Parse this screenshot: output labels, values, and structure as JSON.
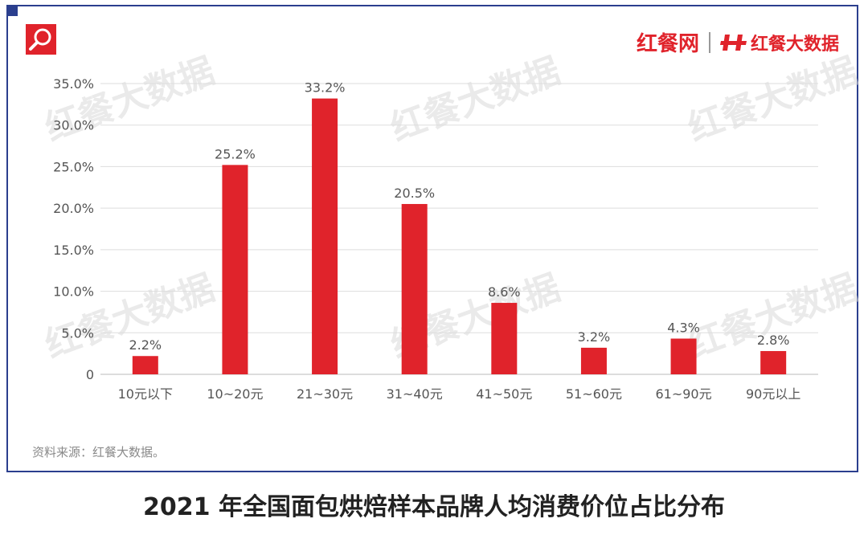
{
  "brand": {
    "main_label": "红餐网",
    "sub_label": "红餐大数据",
    "watermark": "红餐大数据"
  },
  "source": "资料来源：红餐大数据。",
  "caption": "2021 年全国面包烘焙样本品牌人均消费价位占比分布",
  "colors": {
    "bar": "#e0232b",
    "frame": "#2b3f8e",
    "grid": "#dddddd"
  },
  "chart_data": {
    "type": "bar",
    "categories": [
      "10元以下",
      "10~20元",
      "21~30元",
      "31~40元",
      "41~50元",
      "51~60元",
      "61~90元",
      "90元以上"
    ],
    "values": [
      2.2,
      25.2,
      33.2,
      20.5,
      8.6,
      3.2,
      4.3,
      2.8
    ],
    "value_labels": [
      "2.2%",
      "25.2%",
      "33.2%",
      "20.5%",
      "8.6%",
      "3.2%",
      "4.3%",
      "2.8%"
    ],
    "y_ticks": [
      0,
      5,
      10,
      15,
      20,
      25,
      30,
      35
    ],
    "y_tick_labels": [
      "0",
      "5.0%",
      "10.0%",
      "15.0%",
      "20.0%",
      "25.0%",
      "30.0%",
      "35.0%"
    ],
    "ylim": [
      0,
      35
    ],
    "grid": true,
    "title": "",
    "xlabel": "",
    "ylabel": ""
  }
}
